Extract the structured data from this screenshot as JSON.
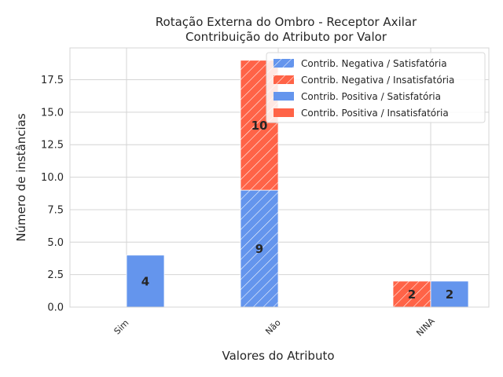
{
  "chart_data": {
    "type": "bar",
    "title": "Rotação Externa do Ombro - Receptor Axilar",
    "subtitle": "Contribuição do Atributo por Valor",
    "xlabel": "Valores do Atributo",
    "ylabel": "Número de instâncias",
    "categories": [
      "Sim",
      "Não",
      "NINA"
    ],
    "ylim": [
      0,
      19.95
    ],
    "yticks": [
      "0.0",
      "2.5",
      "5.0",
      "7.5",
      "10.0",
      "12.5",
      "15.0",
      "17.5"
    ],
    "grid": true,
    "legend_position": "top-right",
    "groups": [
      {
        "name": "Contrib. Negativa",
        "offset": "left",
        "series": [
          {
            "name": "Contrib. Negativa / Satisfatória",
            "color": "#6495ED",
            "hatch": true,
            "values": [
              0,
              9,
              0
            ]
          },
          {
            "name": "Contrib. Negativa / Insatisfatória",
            "color": "#FF6347",
            "hatch": true,
            "values": [
              0,
              10,
              2
            ]
          }
        ]
      },
      {
        "name": "Contrib. Positiva",
        "offset": "right",
        "series": [
          {
            "name": "Contrib. Positiva / Satisfatória",
            "color": "#6495ED",
            "hatch": false,
            "values": [
              4,
              0,
              2
            ]
          },
          {
            "name": "Contrib. Positiva / Insatisfatória",
            "color": "#FF6347",
            "hatch": false,
            "values": [
              0,
              0,
              0
            ]
          }
        ]
      }
    ]
  }
}
